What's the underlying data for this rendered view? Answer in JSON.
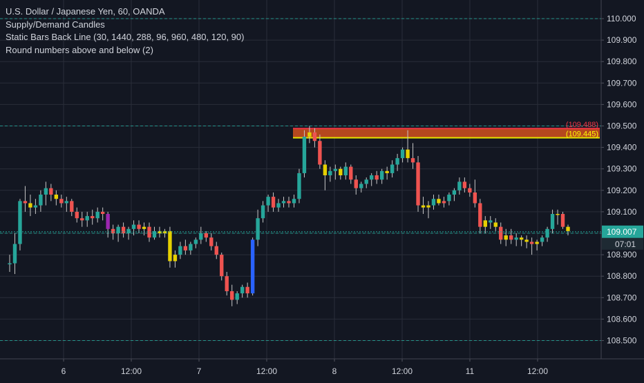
{
  "legend": {
    "symbol": "U.S. Dollar / Japanese Yen, 60, OANDA",
    "indicator_1": "Supply/Demand Candles",
    "indicator_2": "Static Bars Back Line (30, 1440, 288, 96, 960, 480, 120, 90)",
    "indicator_3": "Round numbers above and below (2)"
  },
  "colors": {
    "background": "#131722",
    "grid": "#2a2e39",
    "up": "#26a69a",
    "down": "#ef5350",
    "wick": "#c8c8c8",
    "yellow_candle": "#e6d000",
    "purple_candle": "#9c27b0",
    "blue_candle": "#2962ff",
    "price_line": "#26a69a",
    "axis_text": "#d1d4dc",
    "zone_red": "#f23645",
    "zone_yellow": "#e6e600"
  },
  "chart_data": {
    "type": "candlestick",
    "y_ticks": [
      "110.000",
      "109.900",
      "109.800",
      "109.700",
      "109.600",
      "109.500",
      "109.400",
      "109.300",
      "109.200",
      "109.100",
      "109.000",
      "108.900",
      "108.800",
      "108.700",
      "108.600",
      "108.500"
    ],
    "x_ticks": [
      "6",
      "12:00",
      "7",
      "12:00",
      "8",
      "12:00",
      "11",
      "12:00"
    ],
    "ylim": [
      108.44,
      110.08
    ],
    "round_number_lines": [
      110.0,
      109.5,
      109.0,
      108.5
    ],
    "zone": {
      "top": 109.488,
      "bottom": 109.445,
      "top_label": "(109.488)",
      "bottom_label": "(109.445)"
    },
    "last_price": {
      "value": "109.007",
      "countdown": "07:01"
    },
    "candles": [
      {
        "o": 108.86,
        "h": 108.9,
        "l": 108.82,
        "c": 108.86,
        "color": "up"
      },
      {
        "o": 108.86,
        "h": 109.0,
        "l": 108.81,
        "c": 108.95,
        "color": "up"
      },
      {
        "o": 108.95,
        "h": 109.16,
        "l": 108.92,
        "c": 109.15,
        "color": "up"
      },
      {
        "o": 109.15,
        "h": 109.22,
        "l": 109.1,
        "c": 109.14,
        "color": "down"
      },
      {
        "o": 109.14,
        "h": 109.18,
        "l": 109.08,
        "c": 109.12,
        "color": "yellow"
      },
      {
        "o": 109.12,
        "h": 109.16,
        "l": 109.09,
        "c": 109.13,
        "color": "up"
      },
      {
        "o": 109.13,
        "h": 109.2,
        "l": 109.1,
        "c": 109.18,
        "color": "up"
      },
      {
        "o": 109.18,
        "h": 109.24,
        "l": 109.13,
        "c": 109.21,
        "color": "up"
      },
      {
        "o": 109.21,
        "h": 109.23,
        "l": 109.15,
        "c": 109.18,
        "color": "down"
      },
      {
        "o": 109.18,
        "h": 109.2,
        "l": 109.13,
        "c": 109.16,
        "color": "yellow"
      },
      {
        "o": 109.16,
        "h": 109.18,
        "l": 109.12,
        "c": 109.14,
        "color": "down"
      },
      {
        "o": 109.14,
        "h": 109.17,
        "l": 109.1,
        "c": 109.15,
        "color": "up"
      },
      {
        "o": 109.15,
        "h": 109.16,
        "l": 109.08,
        "c": 109.1,
        "color": "down"
      },
      {
        "o": 109.1,
        "h": 109.12,
        "l": 109.05,
        "c": 109.07,
        "color": "down"
      },
      {
        "o": 109.07,
        "h": 109.1,
        "l": 109.03,
        "c": 109.06,
        "color": "down"
      },
      {
        "o": 109.06,
        "h": 109.1,
        "l": 109.03,
        "c": 109.08,
        "color": "up"
      },
      {
        "o": 109.08,
        "h": 109.11,
        "l": 109.04,
        "c": 109.07,
        "color": "down"
      },
      {
        "o": 109.07,
        "h": 109.12,
        "l": 109.05,
        "c": 109.1,
        "color": "up"
      },
      {
        "o": 109.1,
        "h": 109.12,
        "l": 109.06,
        "c": 109.09,
        "color": "down"
      },
      {
        "o": 109.09,
        "h": 109.1,
        "l": 108.98,
        "c": 109.02,
        "color": "purple"
      },
      {
        "o": 109.02,
        "h": 109.04,
        "l": 108.97,
        "c": 109.0,
        "color": "down"
      },
      {
        "o": 109.0,
        "h": 109.04,
        "l": 108.96,
        "c": 109.03,
        "color": "up"
      },
      {
        "o": 109.03,
        "h": 109.05,
        "l": 108.98,
        "c": 109.0,
        "color": "down"
      },
      {
        "o": 109.0,
        "h": 109.03,
        "l": 108.97,
        "c": 109.02,
        "color": "up"
      },
      {
        "o": 109.02,
        "h": 109.06,
        "l": 108.99,
        "c": 109.04,
        "color": "up"
      },
      {
        "o": 109.04,
        "h": 109.06,
        "l": 109.0,
        "c": 109.02,
        "color": "down"
      },
      {
        "o": 109.02,
        "h": 109.05,
        "l": 108.99,
        "c": 109.03,
        "color": "yellow"
      },
      {
        "o": 109.03,
        "h": 109.05,
        "l": 108.96,
        "c": 108.98,
        "color": "down"
      },
      {
        "o": 108.98,
        "h": 109.03,
        "l": 108.97,
        "c": 109.01,
        "color": "up"
      },
      {
        "o": 109.01,
        "h": 109.03,
        "l": 108.98,
        "c": 109.0,
        "color": "yellow"
      },
      {
        "o": 109.0,
        "h": 109.02,
        "l": 108.98,
        "c": 109.01,
        "color": "yellow"
      },
      {
        "o": 109.01,
        "h": 109.03,
        "l": 108.84,
        "c": 108.87,
        "color": "yellow"
      },
      {
        "o": 108.87,
        "h": 108.92,
        "l": 108.84,
        "c": 108.9,
        "color": "yellow"
      },
      {
        "o": 108.9,
        "h": 108.96,
        "l": 108.88,
        "c": 108.94,
        "color": "up"
      },
      {
        "o": 108.94,
        "h": 108.97,
        "l": 108.9,
        "c": 108.92,
        "color": "down"
      },
      {
        "o": 108.92,
        "h": 108.96,
        "l": 108.9,
        "c": 108.95,
        "color": "up"
      },
      {
        "o": 108.95,
        "h": 108.98,
        "l": 108.93,
        "c": 108.97,
        "color": "up"
      },
      {
        "o": 108.97,
        "h": 109.03,
        "l": 108.95,
        "c": 109.0,
        "color": "up"
      },
      {
        "o": 109.0,
        "h": 109.01,
        "l": 108.96,
        "c": 108.98,
        "color": "down"
      },
      {
        "o": 108.98,
        "h": 109.0,
        "l": 108.92,
        "c": 108.94,
        "color": "down"
      },
      {
        "o": 108.94,
        "h": 108.96,
        "l": 108.88,
        "c": 108.9,
        "color": "down"
      },
      {
        "o": 108.9,
        "h": 108.91,
        "l": 108.78,
        "c": 108.8,
        "color": "down"
      },
      {
        "o": 108.8,
        "h": 108.82,
        "l": 108.71,
        "c": 108.73,
        "color": "down"
      },
      {
        "o": 108.73,
        "h": 108.76,
        "l": 108.66,
        "c": 108.69,
        "color": "down"
      },
      {
        "o": 108.69,
        "h": 108.73,
        "l": 108.67,
        "c": 108.72,
        "color": "up"
      },
      {
        "o": 108.72,
        "h": 108.76,
        "l": 108.7,
        "c": 108.75,
        "color": "up"
      },
      {
        "o": 108.75,
        "h": 108.77,
        "l": 108.7,
        "c": 108.72,
        "color": "down"
      },
      {
        "o": 108.72,
        "h": 108.98,
        "l": 108.71,
        "c": 108.97,
        "color": "blue"
      },
      {
        "o": 108.97,
        "h": 109.11,
        "l": 108.94,
        "c": 109.07,
        "color": "up"
      },
      {
        "o": 109.07,
        "h": 109.15,
        "l": 109.05,
        "c": 109.13,
        "color": "up"
      },
      {
        "o": 109.13,
        "h": 109.18,
        "l": 109.1,
        "c": 109.17,
        "color": "up"
      },
      {
        "o": 109.17,
        "h": 109.19,
        "l": 109.1,
        "c": 109.12,
        "color": "down"
      },
      {
        "o": 109.12,
        "h": 109.16,
        "l": 109.1,
        "c": 109.14,
        "color": "up"
      },
      {
        "o": 109.14,
        "h": 109.17,
        "l": 109.12,
        "c": 109.15,
        "color": "up"
      },
      {
        "o": 109.15,
        "h": 109.17,
        "l": 109.12,
        "c": 109.14,
        "color": "down"
      },
      {
        "o": 109.14,
        "h": 109.18,
        "l": 109.12,
        "c": 109.16,
        "color": "up"
      },
      {
        "o": 109.16,
        "h": 109.3,
        "l": 109.14,
        "c": 109.28,
        "color": "up"
      },
      {
        "o": 109.28,
        "h": 109.48,
        "l": 109.26,
        "c": 109.45,
        "color": "up"
      },
      {
        "o": 109.45,
        "h": 109.5,
        "l": 109.42,
        "c": 109.47,
        "color": "yellow"
      },
      {
        "o": 109.47,
        "h": 109.49,
        "l": 109.4,
        "c": 109.43,
        "color": "down"
      },
      {
        "o": 109.43,
        "h": 109.46,
        "l": 109.3,
        "c": 109.32,
        "color": "down"
      },
      {
        "o": 109.32,
        "h": 109.34,
        "l": 109.2,
        "c": 109.27,
        "color": "yellow"
      },
      {
        "o": 109.27,
        "h": 109.31,
        "l": 109.24,
        "c": 109.29,
        "color": "up"
      },
      {
        "o": 109.29,
        "h": 109.32,
        "l": 109.25,
        "c": 109.3,
        "color": "up"
      },
      {
        "o": 109.3,
        "h": 109.31,
        "l": 109.25,
        "c": 109.27,
        "color": "yellow"
      },
      {
        "o": 109.27,
        "h": 109.33,
        "l": 109.25,
        "c": 109.31,
        "color": "up"
      },
      {
        "o": 109.31,
        "h": 109.32,
        "l": 109.23,
        "c": 109.25,
        "color": "down"
      },
      {
        "o": 109.25,
        "h": 109.27,
        "l": 109.18,
        "c": 109.21,
        "color": "down"
      },
      {
        "o": 109.21,
        "h": 109.24,
        "l": 109.19,
        "c": 109.23,
        "color": "up"
      },
      {
        "o": 109.23,
        "h": 109.26,
        "l": 109.21,
        "c": 109.25,
        "color": "up"
      },
      {
        "o": 109.25,
        "h": 109.28,
        "l": 109.22,
        "c": 109.27,
        "color": "up"
      },
      {
        "o": 109.27,
        "h": 109.29,
        "l": 109.23,
        "c": 109.25,
        "color": "down"
      },
      {
        "o": 109.25,
        "h": 109.3,
        "l": 109.23,
        "c": 109.29,
        "color": "up"
      },
      {
        "o": 109.29,
        "h": 109.31,
        "l": 109.25,
        "c": 109.28,
        "color": "yellow"
      },
      {
        "o": 109.28,
        "h": 109.34,
        "l": 109.26,
        "c": 109.32,
        "color": "up"
      },
      {
        "o": 109.32,
        "h": 109.37,
        "l": 109.29,
        "c": 109.35,
        "color": "up"
      },
      {
        "o": 109.35,
        "h": 109.4,
        "l": 109.33,
        "c": 109.39,
        "color": "up"
      },
      {
        "o": 109.39,
        "h": 109.48,
        "l": 109.33,
        "c": 109.35,
        "color": "yellow"
      },
      {
        "o": 109.35,
        "h": 109.42,
        "l": 109.3,
        "c": 109.33,
        "color": "down"
      },
      {
        "o": 109.33,
        "h": 109.36,
        "l": 109.1,
        "c": 109.13,
        "color": "down"
      },
      {
        "o": 109.13,
        "h": 109.17,
        "l": 109.09,
        "c": 109.12,
        "color": "yellow"
      },
      {
        "o": 109.12,
        "h": 109.15,
        "l": 109.07,
        "c": 109.13,
        "color": "yellow"
      },
      {
        "o": 109.13,
        "h": 109.18,
        "l": 109.11,
        "c": 109.16,
        "color": "up"
      },
      {
        "o": 109.16,
        "h": 109.18,
        "l": 109.13,
        "c": 109.14,
        "color": "yellow"
      },
      {
        "o": 109.14,
        "h": 109.17,
        "l": 109.12,
        "c": 109.15,
        "color": "down"
      },
      {
        "o": 109.15,
        "h": 109.19,
        "l": 109.13,
        "c": 109.18,
        "color": "up"
      },
      {
        "o": 109.18,
        "h": 109.21,
        "l": 109.15,
        "c": 109.2,
        "color": "up"
      },
      {
        "o": 109.2,
        "h": 109.26,
        "l": 109.18,
        "c": 109.24,
        "color": "up"
      },
      {
        "o": 109.24,
        "h": 109.26,
        "l": 109.19,
        "c": 109.21,
        "color": "down"
      },
      {
        "o": 109.21,
        "h": 109.23,
        "l": 109.17,
        "c": 109.19,
        "color": "down"
      },
      {
        "o": 109.19,
        "h": 109.25,
        "l": 109.12,
        "c": 109.14,
        "color": "down"
      },
      {
        "o": 109.14,
        "h": 109.16,
        "l": 109.0,
        "c": 109.03,
        "color": "down"
      },
      {
        "o": 109.03,
        "h": 109.08,
        "l": 109.0,
        "c": 109.06,
        "color": "yellow"
      },
      {
        "o": 109.06,
        "h": 109.08,
        "l": 109.02,
        "c": 109.05,
        "color": "up"
      },
      {
        "o": 109.05,
        "h": 109.07,
        "l": 109.01,
        "c": 109.03,
        "color": "yellow"
      },
      {
        "o": 109.03,
        "h": 109.05,
        "l": 108.95,
        "c": 108.97,
        "color": "down"
      },
      {
        "o": 108.97,
        "h": 109.02,
        "l": 108.94,
        "c": 108.99,
        "color": "yellow"
      },
      {
        "o": 108.99,
        "h": 109.02,
        "l": 108.95,
        "c": 108.97,
        "color": "down"
      },
      {
        "o": 108.97,
        "h": 109.0,
        "l": 108.94,
        "c": 108.98,
        "color": "up"
      },
      {
        "o": 108.98,
        "h": 108.99,
        "l": 108.94,
        "c": 108.97,
        "color": "yellow"
      },
      {
        "o": 108.97,
        "h": 108.99,
        "l": 108.93,
        "c": 108.96,
        "color": "yellow"
      },
      {
        "o": 108.96,
        "h": 108.98,
        "l": 108.9,
        "c": 108.95,
        "color": "down"
      },
      {
        "o": 108.95,
        "h": 108.97,
        "l": 108.92,
        "c": 108.96,
        "color": "yellow"
      },
      {
        "o": 108.96,
        "h": 108.99,
        "l": 108.94,
        "c": 108.98,
        "color": "up"
      },
      {
        "o": 108.98,
        "h": 109.03,
        "l": 108.96,
        "c": 109.02,
        "color": "up"
      },
      {
        "o": 109.02,
        "h": 109.11,
        "l": 109.0,
        "c": 109.09,
        "color": "up"
      },
      {
        "o": 109.09,
        "h": 109.11,
        "l": 109.04,
        "c": 109.09,
        "color": "yellow"
      },
      {
        "o": 109.09,
        "h": 109.1,
        "l": 109.02,
        "c": 109.03,
        "color": "down"
      },
      {
        "o": 109.03,
        "h": 109.04,
        "l": 108.99,
        "c": 109.01,
        "color": "yellow"
      }
    ]
  }
}
